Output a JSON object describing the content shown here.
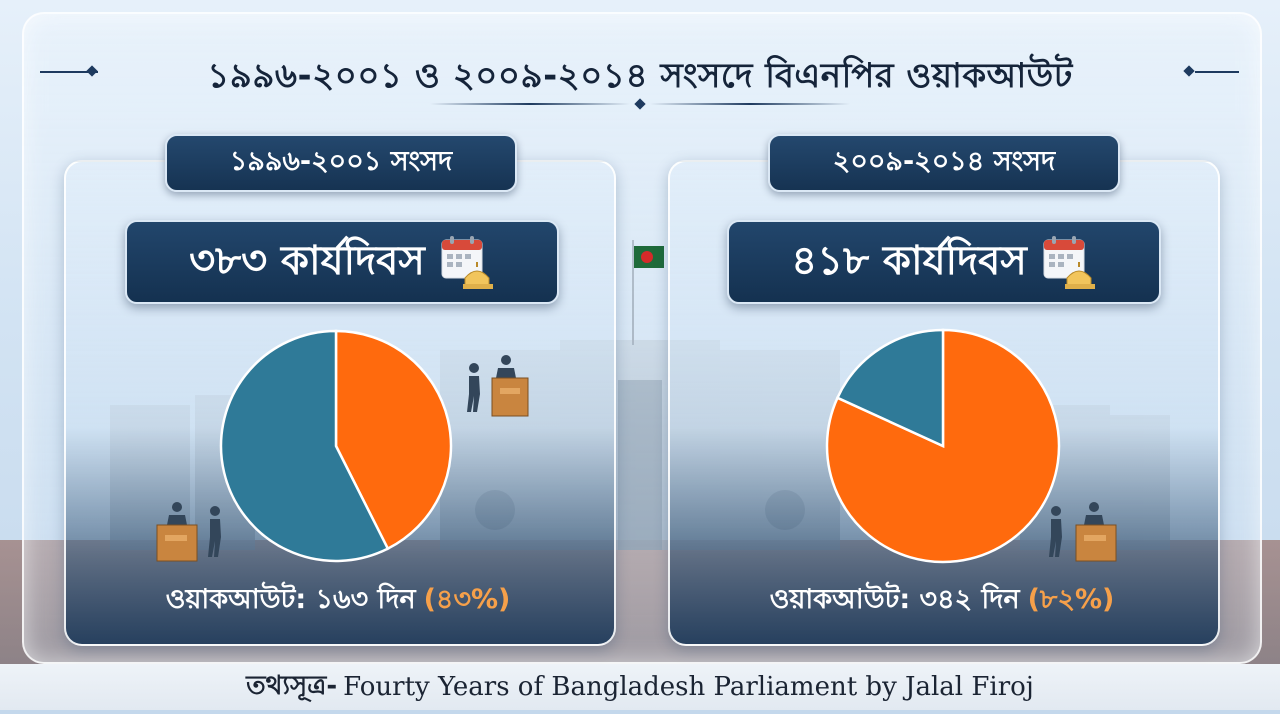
{
  "title": "১৯৯৬-২০০১ ও ২০০৯-২০১৪ সংসদে বিএনপির ওয়াকআউট",
  "colors": {
    "walkout": "#ff6a0d",
    "other": "#2f7a98",
    "navy": "#163352",
    "percent_text": "#f6a04a"
  },
  "icons": [
    "calendar-parliament-icon",
    "speaker-podium-icon",
    "walking-person-icon",
    "bangladesh-flag-icon"
  ],
  "chart_data": [
    {
      "type": "pie",
      "title": "১৯৯৬-২০০১ সংসদ",
      "total_label": "৩৮৩ কার্যদিবস",
      "total_days": 383,
      "slices": [
        {
          "name": "",
          "value": 163,
          "percent": 43,
          "color": "#ff6a0d"
        },
        {
          "name": "",
          "value": 220,
          "percent": 57,
          "color": "#2f7a98"
        }
      ],
      "walkout_label": "ওয়াকআউট: ১৬৩ দিন",
      "walkout_percent_label": "(৪৩%)"
    },
    {
      "type": "pie",
      "title": "২০০৯-২০১৪ সংসদ",
      "total_label": "৪১৮ কার্যদিবস",
      "total_days": 418,
      "slices": [
        {
          "name": "",
          "value": 342,
          "percent": 82,
          "color": "#ff6a0d"
        },
        {
          "name": "",
          "value": 76,
          "percent": 18,
          "color": "#2f7a98"
        }
      ],
      "walkout_label": "ওয়াকআউট: ৩৪২ দিন",
      "walkout_percent_label": "(৮২%)"
    }
  ],
  "source": {
    "label": "তথ্যসূত্র-",
    "text": "Fourty Years of Bangladesh Parliament by Jalal Firoj"
  }
}
